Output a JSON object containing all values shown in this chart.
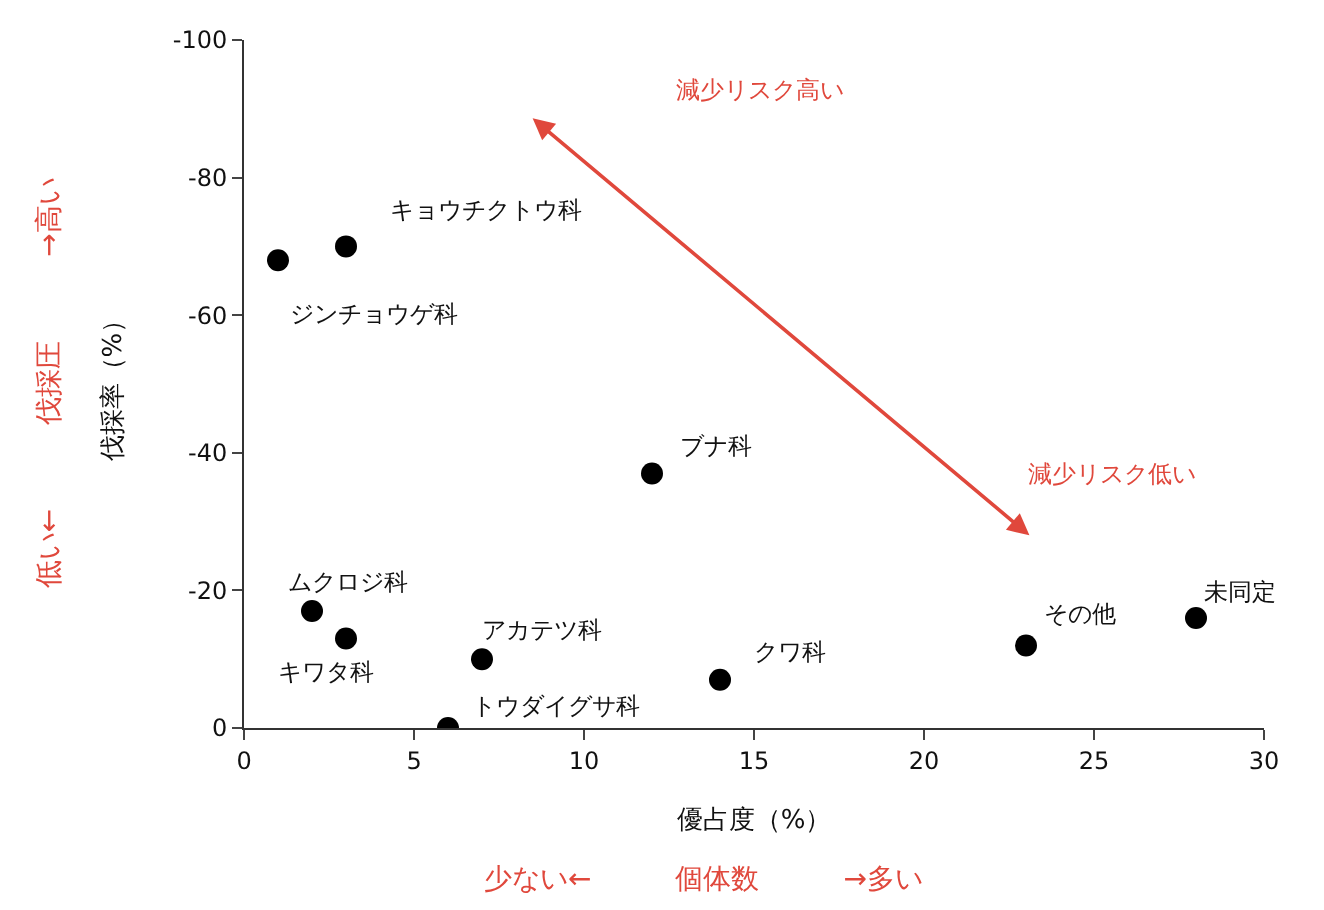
{
  "chart_data": {
    "type": "scatter",
    "xlabel": "優占度（%）",
    "ylabel": "伐採率（%）",
    "x": [
      1,
      3,
      12,
      2,
      3,
      7,
      6,
      14,
      23,
      28
    ],
    "series": [
      {
        "color": "#000000",
        "values": [
          -68,
          -70,
          -37,
          -17,
          -13,
          -10,
          0,
          -7,
          -12,
          -16
        ]
      }
    ],
    "xlim": [
      0,
      30
    ],
    "xticks": [
      0,
      5,
      10,
      15,
      20,
      25,
      30
    ],
    "ylim": [
      0,
      -100
    ],
    "yticks": [
      0,
      -20,
      -40,
      -60,
      -80,
      -100
    ],
    "grid": false,
    "marker": "circle",
    "annotations": [
      {
        "text": "ジンチョウゲ科",
        "x": 1,
        "y": -68
      },
      {
        "text": "キョウチクトウ科",
        "x": 3,
        "y": -70
      },
      {
        "text": "ブナ科",
        "x": 12,
        "y": -37
      },
      {
        "text": "ムクロジ科",
        "x": 2,
        "y": -17
      },
      {
        "text": "キワタ科",
        "x": 3,
        "y": -13
      },
      {
        "text": "アカテツ科",
        "x": 7,
        "y": -10
      },
      {
        "text": "トウダイグサ科",
        "x": 6,
        "y": 0
      },
      {
        "text": "クワ科",
        "x": 14,
        "y": -7
      },
      {
        "text": "その他",
        "x": 23,
        "y": -12
      },
      {
        "text": "未同定",
        "x": 28,
        "y": -16
      },
      "減少リスク高い",
      "減少リスク低い",
      "少ない←　　　個体数　　　→多い",
      "低い←　　　伐採圧　　　→高い"
    ]
  }
}
